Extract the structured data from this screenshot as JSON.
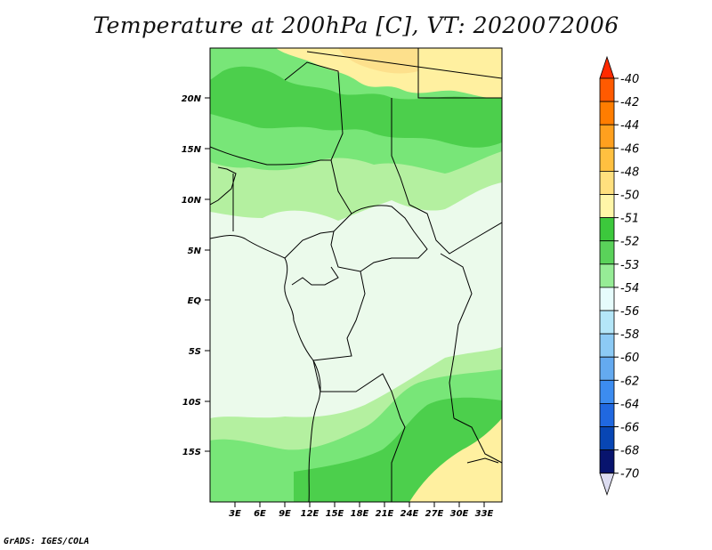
{
  "title": "Temperature at 200hPa [C], VT: 2020072006",
  "credit": "GrADS: IGES/COLA",
  "map": {
    "lat_labels": [
      "20N",
      "15N",
      "10N",
      "5N",
      "EQ",
      "5S",
      "10S",
      "15S"
    ],
    "lon_labels": [
      "3E",
      "6E",
      "9E",
      "12E",
      "15E",
      "18E",
      "21E",
      "24E",
      "27E",
      "30E",
      "33E"
    ],
    "colors": {
      "land_pale": "#ebfaeb",
      "light_green": "#b4f0a0",
      "mid_green": "#78e678",
      "green": "#4ccf4c",
      "pale_yellow": "#fff0a0",
      "yellow": "#fde08c",
      "border": "#000000"
    }
  },
  "colorbar": {
    "labels": [
      "-40",
      "-42",
      "-44",
      "-46",
      "-48",
      "-50",
      "-51",
      "-52",
      "-53",
      "-54",
      "-56",
      "-58",
      "-60",
      "-62",
      "-64",
      "-66",
      "-68",
      "-70"
    ],
    "colors": [
      "#ff2a00",
      "#ff5a00",
      "#ff7d00",
      "#ffa01e",
      "#ffc040",
      "#ffe07e",
      "#fff6a8",
      "#3cc83c",
      "#5ad25a",
      "#96ec96",
      "#e6fcfc",
      "#b4e6f8",
      "#8ccaf5",
      "#64aaf0",
      "#3c8cf0",
      "#2068e0",
      "#0846b4",
      "#08146e",
      "#dcdcf0"
    ]
  }
}
